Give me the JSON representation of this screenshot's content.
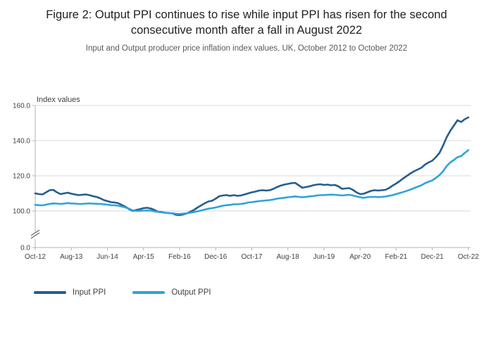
{
  "chart_data": {
    "type": "line",
    "title": "Figure 2: Output PPI continues to rise while input PPI has risen for the second consecutive month after a fall in August 2022",
    "subtitle": "Input and Output producer price inflation index values, UK, October 2012 to October 2022",
    "ylabel": "Index values",
    "xlabel": "",
    "y_ticks": [
      160.0,
      140.0,
      120.0,
      100.0,
      0.0
    ],
    "y_axis_break": true,
    "ylim": [
      0,
      160
    ],
    "grid": "horizontal",
    "legend_position": "bottom-left",
    "frequency": "monthly",
    "x_range": [
      "Oct-12",
      "Oct-22"
    ],
    "x_tick_labels": [
      "Oct-12",
      "Aug-13",
      "Jun-14",
      "Apr-15",
      "Feb-16",
      "Dec-16",
      "Oct-17",
      "Aug-18",
      "Jun-19",
      "Apr-20",
      "Feb-21",
      "Dec-21",
      "Oct-22"
    ],
    "series": [
      {
        "name": "Input PPI",
        "color": "#235e8f",
        "values": [
          110.0,
          109.6,
          109.4,
          110.6,
          111.8,
          112.0,
          110.6,
          109.6,
          110.0,
          110.4,
          109.8,
          109.4,
          109.0,
          109.2,
          109.4,
          109.0,
          108.4,
          108.0,
          107.2,
          106.2,
          105.6,
          105.0,
          104.8,
          104.4,
          103.4,
          102.4,
          101.0,
          100.0,
          100.6,
          101.0,
          101.6,
          101.8,
          101.4,
          100.6,
          99.6,
          99.4,
          99.0,
          98.8,
          98.6,
          97.8,
          97.6,
          98.0,
          98.6,
          99.6,
          100.6,
          102.0,
          103.2,
          104.4,
          105.4,
          105.8,
          107.0,
          108.4,
          108.8,
          109.0,
          108.6,
          109.0,
          108.6,
          108.8,
          109.4,
          110.0,
          110.6,
          111.0,
          111.6,
          111.8,
          111.6,
          111.8,
          112.6,
          113.6,
          114.4,
          115.0,
          115.4,
          115.8,
          116.0,
          114.6,
          113.2,
          113.6,
          114.0,
          114.6,
          115.0,
          115.2,
          114.8,
          115.0,
          114.6,
          114.8,
          114.0,
          112.6,
          112.8,
          113.0,
          112.0,
          110.6,
          109.6,
          109.8,
          110.6,
          111.4,
          111.8,
          111.6,
          111.8,
          112.0,
          113.0,
          114.4,
          115.6,
          117.0,
          118.6,
          120.0,
          121.4,
          122.6,
          123.6,
          124.6,
          126.4,
          127.6,
          128.6,
          130.6,
          133.0,
          137.2,
          142.0,
          145.6,
          148.6,
          151.6,
          150.6,
          152.2,
          153.2
        ]
      },
      {
        "name": "Output PPI",
        "color": "#2ea3db",
        "values": [
          103.5,
          103.3,
          103.2,
          103.6,
          104.0,
          104.3,
          104.2,
          104.0,
          104.2,
          104.5,
          104.3,
          104.2,
          104.0,
          104.0,
          104.2,
          104.3,
          104.2,
          104.1,
          104.0,
          103.8,
          103.6,
          103.3,
          103.2,
          103.0,
          102.5,
          102.0,
          101.3,
          100.3,
          100.1,
          100.0,
          100.2,
          100.3,
          100.2,
          99.8,
          99.5,
          99.2,
          99.0,
          98.8,
          98.7,
          98.4,
          98.3,
          98.5,
          98.7,
          99.0,
          99.4,
          99.8,
          100.3,
          100.8,
          101.3,
          101.6,
          102.0,
          102.5,
          103.0,
          103.3,
          103.5,
          103.8,
          103.8,
          104.0,
          104.3,
          104.8,
          105.0,
          105.3,
          105.6,
          105.8,
          106.0,
          106.2,
          106.5,
          107.0,
          107.3,
          107.5,
          107.8,
          108.0,
          108.3,
          108.0,
          107.8,
          108.0,
          108.3,
          108.5,
          108.8,
          109.0,
          109.0,
          109.2,
          109.3,
          109.2,
          109.0,
          108.8,
          109.0,
          109.2,
          108.8,
          108.3,
          107.8,
          107.5,
          107.8,
          108.0,
          108.0,
          107.9,
          108.0,
          108.2,
          108.6,
          109.0,
          109.6,
          110.2,
          110.8,
          111.5,
          112.2,
          113.0,
          113.8,
          114.6,
          115.8,
          116.6,
          117.4,
          118.8,
          120.4,
          122.6,
          125.6,
          127.6,
          129.0,
          130.6,
          131.2,
          133.0,
          134.6
        ]
      }
    ],
    "colors": {
      "gridline": "#d9d9d9",
      "axis": "#b3b3b3",
      "tick_label": "#414042"
    }
  }
}
